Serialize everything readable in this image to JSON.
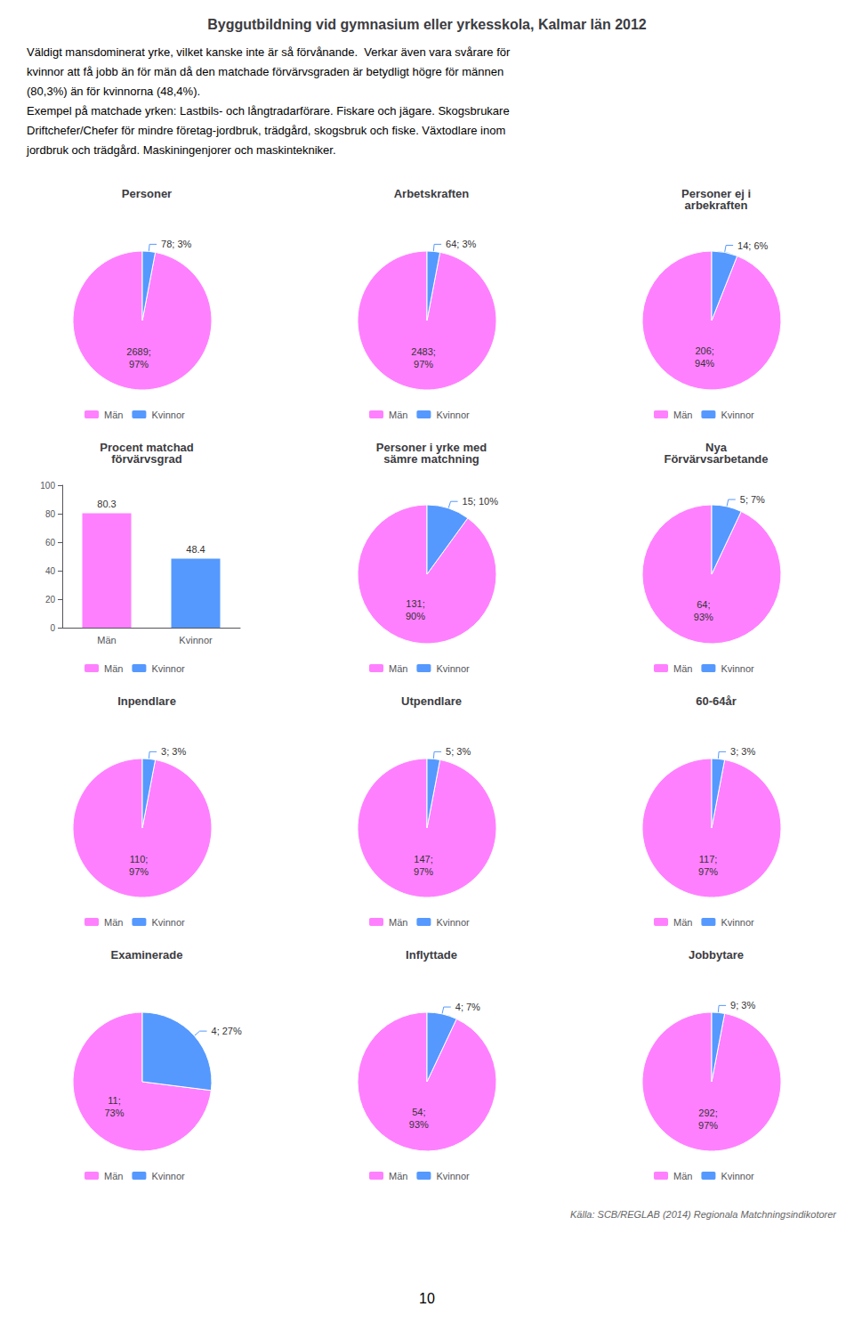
{
  "title": "Byggutbildning vid gymnasium eller yrkesskola, Kalmar län 2012",
  "annotations": [
    "Väldigt mansdominerat yrke, vilket kanske inte är så förvånande.  Verkar även vara svårare för",
    "kvinnor att få jobb än för män då den matchade förvärvsgraden är betydligt högre för männen",
    "(80,3%) än för kvinnorna (48,4%).",
    "Exempel på matchade yrken: Lastbils- och långtradarförare. Fiskare och jägare. Skogsbrukare",
    "Driftchefer/Chefer för mindre företag-jordbruk, trädgård, skogsbruk och fiske. Växtodlare inom",
    "jordbruk och trädgård. Maskiningenjorer och maskintekniker.",
    "Källa: SCB/REGLAB (2014) Regionala Matchningsindikotorer",
    "10"
  ],
  "chart_data": [
    {
      "type": "pie",
      "title": "Personer",
      "categories": [
        "Män",
        "Kvinnor"
      ],
      "values": [
        97,
        3
      ],
      "value_labels": [
        "2689;\n97%",
        "78; 3%"
      ],
      "colors": [
        "#ff80ff",
        "#5599ff"
      ],
      "legend": "bottom"
    },
    {
      "type": "pie",
      "title": "Arbetskraften",
      "categories": [
        "Män",
        "Kvinnor"
      ],
      "values": [
        97,
        3
      ],
      "value_labels": [
        "2483;\n97%",
        "64; 3%"
      ],
      "colors": [
        "#ff80ff",
        "#5599ff"
      ],
      "legend": "bottom"
    },
    {
      "type": "pie",
      "title": "Personer ej i\narbekraften",
      "categories": [
        "Män",
        "Kvinnor"
      ],
      "values": [
        94,
        6
      ],
      "value_labels": [
        "206;\n94%",
        "14; 6%"
      ],
      "colors": [
        "#ff80ff",
        "#5599ff"
      ],
      "legend": "bottom"
    },
    {
      "type": "bar",
      "title": "Procent matchad\nförvärvsgrad",
      "categories": [
        "Män",
        "Kvinnor"
      ],
      "values": [
        80.3,
        48.4
      ],
      "colors": [
        "#ff80ff",
        "#5599ff"
      ],
      "ylim": [
        0,
        100
      ],
      "yticks": [
        0,
        20,
        40,
        60,
        80,
        100
      ],
      "grid": false,
      "data_labels": true,
      "legend": "bottom"
    },
    {
      "type": "pie",
      "title": "Personer i yrke med\nsämre matchning",
      "categories": [
        "Män",
        "Kvinnor"
      ],
      "values": [
        90,
        10
      ],
      "value_labels": [
        "131;\n90%",
        "15; 10%"
      ],
      "colors": [
        "#ff80ff",
        "#5599ff"
      ],
      "legend": "bottom"
    },
    {
      "type": "pie",
      "title": "Nya\nFörvärvsarbetande",
      "categories": [
        "Män",
        "Kvinnor"
      ],
      "values": [
        93,
        7
      ],
      "value_labels": [
        "64;\n93%",
        "5; 7%"
      ],
      "colors": [
        "#ff80ff",
        "#5599ff"
      ],
      "legend": "bottom"
    },
    {
      "type": "pie",
      "title": "Inpendlare",
      "categories": [
        "Män",
        "Kvinnor"
      ],
      "values": [
        97,
        3
      ],
      "value_labels": [
        "110;\n97%",
        "3; 3%"
      ],
      "colors": [
        "#ff80ff",
        "#5599ff"
      ],
      "legend": "bottom"
    },
    {
      "type": "pie",
      "title": "Utpendlare",
      "categories": [
        "Män",
        "Kvinnor"
      ],
      "values": [
        97,
        3
      ],
      "value_labels": [
        "147;\n97%",
        "5; 3%"
      ],
      "colors": [
        "#ff80ff",
        "#5599ff"
      ],
      "legend": "bottom"
    },
    {
      "type": "pie",
      "title": "60-64år",
      "categories": [
        "Män",
        "Kvinnor"
      ],
      "values": [
        97,
        3
      ],
      "value_labels": [
        "117;\n97%",
        "3; 3%"
      ],
      "colors": [
        "#ff80ff",
        "#5599ff"
      ],
      "legend": "bottom"
    },
    {
      "type": "pie",
      "title": "Examinerade",
      "categories": [
        "Män",
        "Kvinnor"
      ],
      "values": [
        73,
        27
      ],
      "value_labels": [
        "11;\n73%",
        "4; 27%"
      ],
      "colors": [
        "#ff80ff",
        "#5599ff"
      ],
      "legend": "bottom"
    },
    {
      "type": "pie",
      "title": "Inflyttade",
      "categories": [
        "Män",
        "Kvinnor"
      ],
      "values": [
        93,
        7
      ],
      "value_labels": [
        "54;\n93%",
        "4; 7%"
      ],
      "colors": [
        "#ff80ff",
        "#5599ff"
      ],
      "legend": "bottom"
    },
    {
      "type": "pie",
      "title": "Jobbytare",
      "categories": [
        "Män",
        "Kvinnor"
      ],
      "values": [
        97,
        3
      ],
      "value_labels": [
        "292;\n97%",
        "9; 3%"
      ],
      "colors": [
        "#ff80ff",
        "#5599ff"
      ],
      "legend": "bottom"
    }
  ]
}
